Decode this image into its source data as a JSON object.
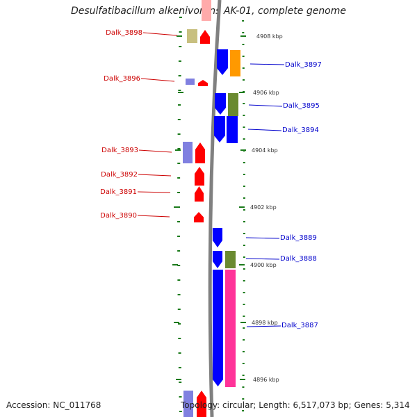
{
  "title": "Desulfatibacillum alkenivorans AK-01, complete genome",
  "footer": {
    "accession": "Accession: NC_011768",
    "summary": "Topology: circular; Length: 6,517,073 bp; Genes: 5,314"
  },
  "colors": {
    "backbone": "#808080",
    "tick": "#1a7a1a",
    "left_label": "#cc0000",
    "right_label": "#0000cc",
    "red": "#ff0000",
    "blue": "#0000ff",
    "purple": "#8080e0",
    "tan": "#c8c080",
    "orange": "#ff9900",
    "olive": "#6a8a30",
    "pink": "#ff3399",
    "pink_top": "#ffaaaa"
  },
  "scale_labels": [
    "4908 kbp",
    "4906 kbp",
    "4904 kbp",
    "4902 kbp",
    "4900 kbp",
    "4898 kbp",
    "4896 kbp"
  ],
  "left_genes": [
    "Dalk_3898",
    "Dalk_3896",
    "Dalk_3893",
    "Dalk_3892",
    "Dalk_3891",
    "Dalk_3890"
  ],
  "right_genes": [
    "Dalk_3897",
    "Dalk_3895",
    "Dalk_3894",
    "Dalk_3889",
    "Dalk_3888",
    "Dalk_3887"
  ]
}
